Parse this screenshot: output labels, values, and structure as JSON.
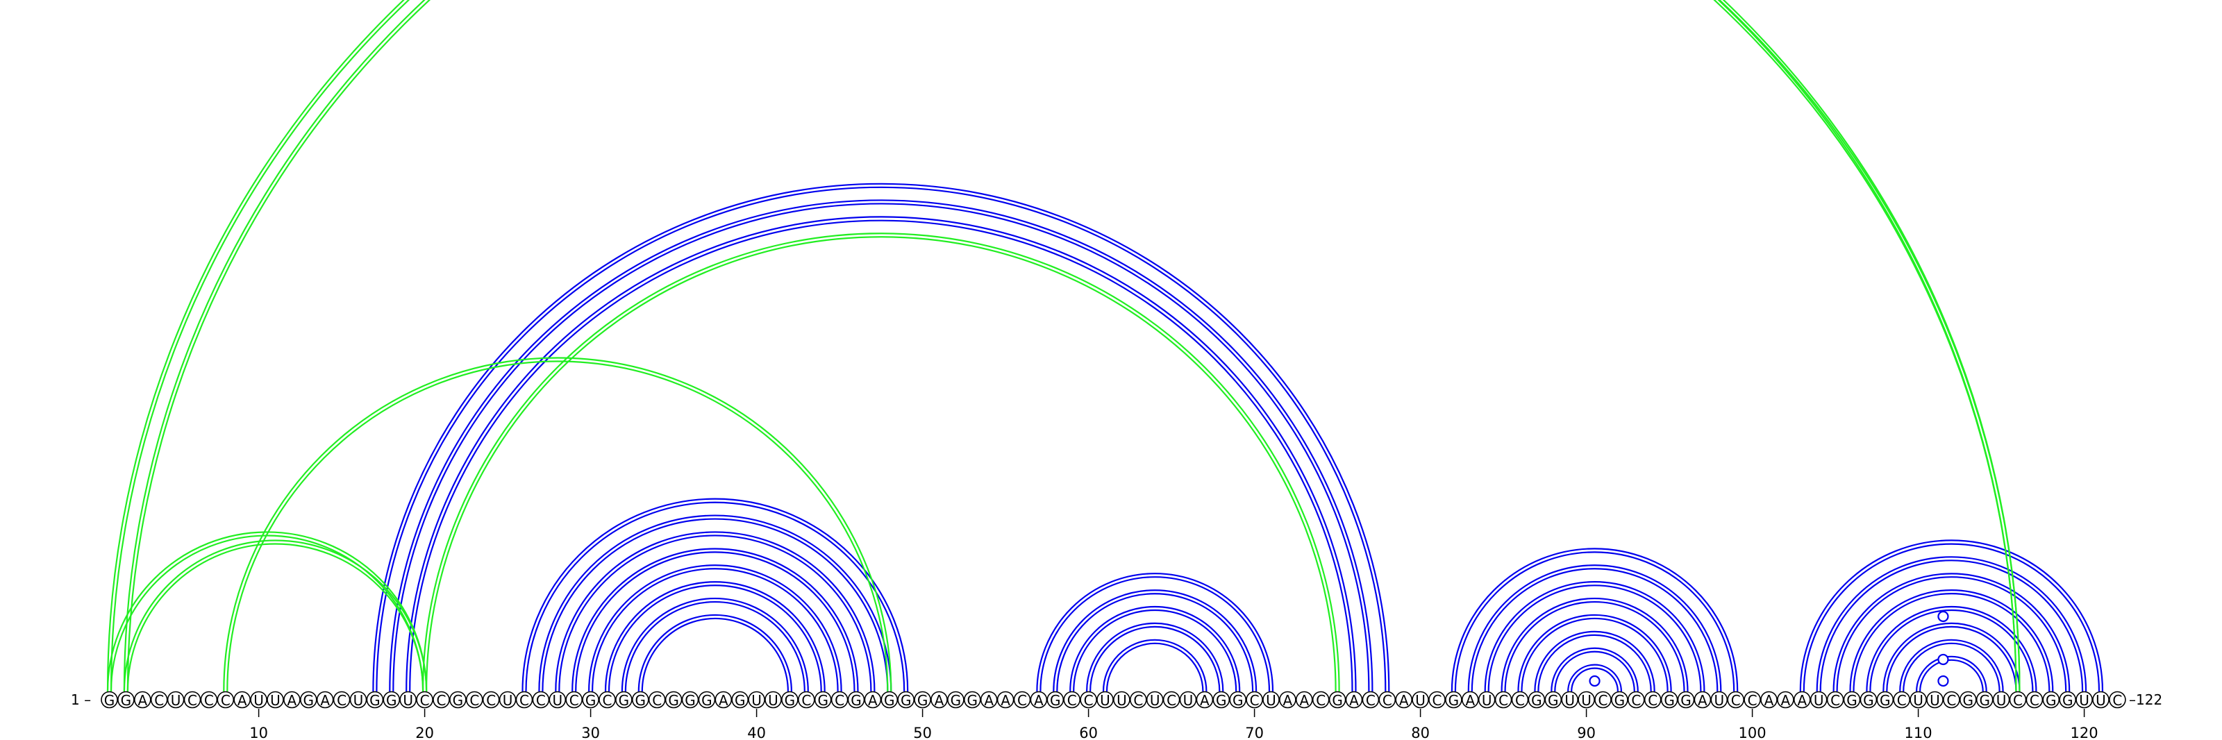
{
  "sequence": "GGACUCCCAUUAGACUGGUCCGCCUCCUCGCGGCGGGAGUUGCGCGAGGGAGGAACAGCCUUCUCUAGGCUAACGACCAUCGAUCCGGUUCGCCGGAUCCAAAUCGGGCUUCGGUCCGGUUC",
  "start_label": "1 –",
  "end_label": "–122",
  "ticks": [
    10,
    20,
    30,
    40,
    50,
    60,
    70,
    80,
    90,
    100,
    110,
    120
  ],
  "colors": {
    "primary": "#0000ee",
    "pseudoknot": "#22ee22"
  },
  "helices": [
    {
      "kind": "primary",
      "pairs": [
        [
          17,
          78
        ],
        [
          18,
          77
        ],
        [
          19,
          76
        ]
      ]
    },
    {
      "kind": "primary",
      "pairs": [
        [
          26,
          49
        ],
        [
          27,
          48
        ],
        [
          28,
          47
        ],
        [
          29,
          46
        ],
        [
          30,
          45
        ],
        [
          31,
          44
        ],
        [
          32,
          43
        ],
        [
          33,
          42
        ]
      ]
    },
    {
      "kind": "primary",
      "pairs": [
        [
          57,
          71
        ],
        [
          58,
          70
        ],
        [
          59,
          69
        ],
        [
          60,
          68
        ],
        [
          61,
          67
        ]
      ]
    },
    {
      "kind": "primary",
      "pairs": [
        [
          82,
          99
        ],
        [
          83,
          98
        ],
        [
          84,
          97
        ],
        [
          85,
          96
        ],
        [
          86,
          95
        ],
        [
          87,
          94
        ],
        [
          88,
          93
        ],
        [
          89,
          92
        ]
      ]
    },
    {
      "kind": "primary",
      "pairs": [
        [
          103,
          121
        ],
        [
          104,
          120
        ],
        [
          105,
          119
        ],
        [
          106,
          118
        ],
        [
          107,
          117
        ],
        [
          108,
          116
        ],
        [
          109,
          115
        ],
        [
          110,
          114
        ]
      ]
    },
    {
      "kind": "pseudoknot",
      "pairs": [
        [
          1,
          116
        ],
        [
          2,
          116
        ]
      ]
    },
    {
      "kind": "pseudoknot",
      "pairs": [
        [
          1,
          20
        ],
        [
          2,
          20
        ]
      ]
    },
    {
      "kind": "pseudoknot",
      "pairs": [
        [
          8,
          48
        ]
      ]
    },
    {
      "kind": "pseudoknot",
      "pairs": [
        [
          20,
          75
        ]
      ]
    }
  ],
  "markers": [
    {
      "position": 90.5,
      "level": 1
    },
    {
      "position": 111.5,
      "level": 1
    },
    {
      "position": 111.5,
      "level": 2
    },
    {
      "position": 111.5,
      "level": 4
    }
  ]
}
